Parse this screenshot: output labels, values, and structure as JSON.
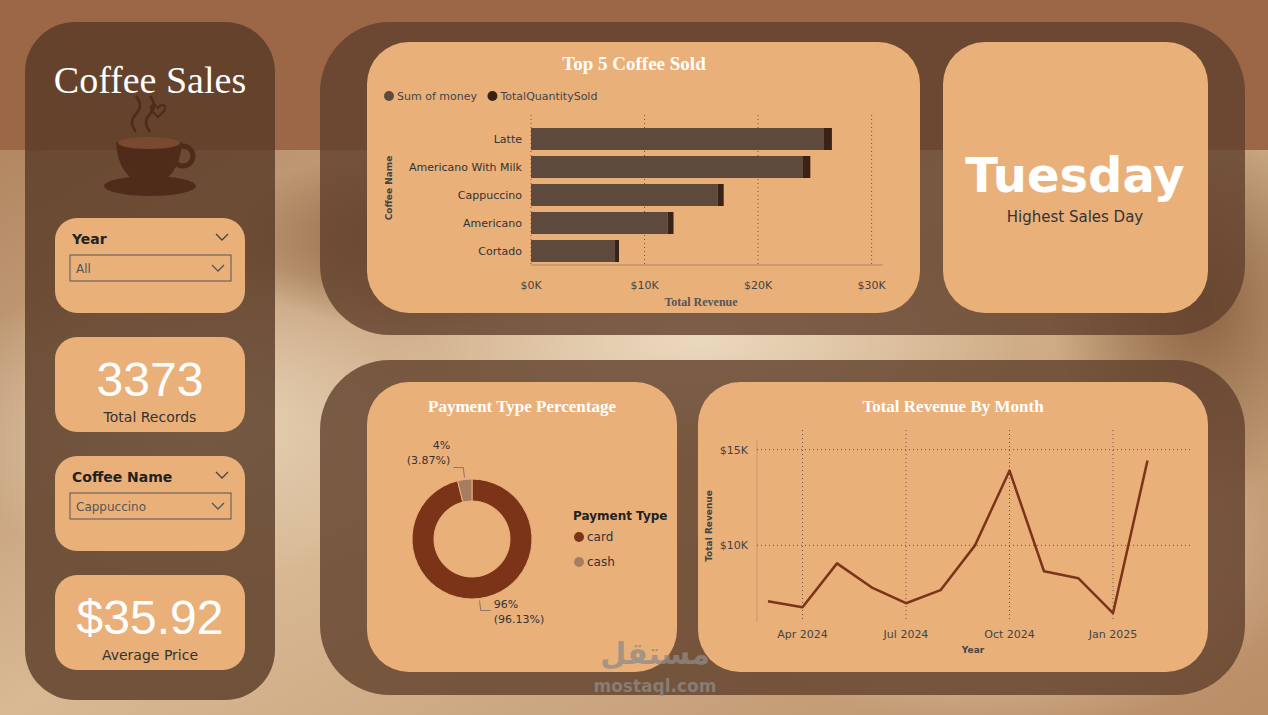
{
  "dashboard": {
    "title": "Coffee Sales",
    "slicers": [
      {
        "label": "Year",
        "selected": "All"
      },
      {
        "label": "Coffee Name",
        "selected": "Cappuccino"
      }
    ],
    "cards": [
      {
        "value": "3373",
        "label": "Total Records"
      },
      {
        "value": "$35.92",
        "label": "Average Price"
      },
      {
        "value": "Tuesday",
        "label": "Highest Sales Day"
      }
    ],
    "watermark": [
      "مستقل",
      "mostaql.com"
    ]
  },
  "chart_data": [
    {
      "type": "bar",
      "title": "Top 5 Coffee Sold",
      "orientation": "horizontal",
      "stacked": true,
      "categories": [
        "Latte",
        "Americano With Milk",
        "Cappuccino",
        "Americano",
        "Cortado"
      ],
      "series": [
        {
          "name": "Sum of money",
          "color": "#5e4a3c",
          "values": [
            25800,
            23900,
            16450,
            12050,
            7400
          ]
        },
        {
          "name": "TotalQuantitySold",
          "color": "#3a2216",
          "values": [
            700,
            700,
            520,
            500,
            350
          ]
        }
      ],
      "xlim": [
        0,
        31000
      ],
      "xticks": [
        {
          "value": 0,
          "label": "$0K"
        },
        {
          "value": 10000,
          "label": "$10K"
        },
        {
          "value": 20000,
          "label": "$20K"
        },
        {
          "value": 30000,
          "label": "$30K"
        }
      ],
      "x_label": "Total Revenue",
      "y_label": "Coffee Name",
      "grid": true,
      "legend": "top-left"
    },
    {
      "type": "pie",
      "title": "Payment Type Percentage",
      "categories": [
        "card",
        "cash"
      ],
      "values": [
        96.13,
        3.87
      ],
      "value_labels": [
        "96% (96.13%)",
        "4% (3.87%)"
      ],
      "colors": [
        "#7b3417",
        "#a67d5f"
      ],
      "legend_title": "Payment Type",
      "legend": "right",
      "data_labels": true
    },
    {
      "type": "line",
      "title": "Total Revenue By Month",
      "categories": [
        null,
        "Apr 2024",
        null,
        null,
        "Jul 2024",
        null,
        null,
        "Oct 2024",
        null,
        null,
        "Jan 2025",
        null
      ],
      "values": [
        7080,
        6770,
        9060,
        7810,
        6980,
        7660,
        10000,
        13900,
        8650,
        8280,
        6460,
        14430
      ],
      "color": "#7b3417",
      "ylim": [
        6000,
        15500
      ],
      "yticks": [
        {
          "value": 10000,
          "label": "$10K"
        },
        {
          "value": 15000,
          "label": "$15K"
        }
      ],
      "x_label": "Year",
      "y_label": "Total Revenue",
      "grid": true
    }
  ]
}
